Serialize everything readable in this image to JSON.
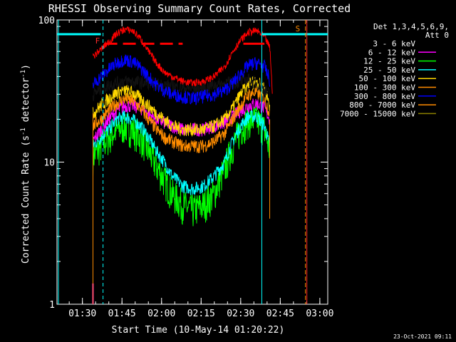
{
  "chart_data": {
    "type": "line",
    "title": "RHESSI Observing Summary Count Rates, Corrected",
    "xlabel": "Start Time (10-May-14 01:20:22)",
    "ylabel": "Corrected Count Rate (s⁻¹ detector⁻¹)",
    "ylabel_main": "Corrected Count Rate (s",
    "ylabel_mid": " detector",
    "ylabel_end": ")",
    "ylabel_sup": "-1",
    "y_scale": "log",
    "ylim": [
      1,
      100
    ],
    "y_ticks": [
      "1",
      "10",
      "100"
    ],
    "x_ticks": [
      "01:30",
      "01:45",
      "02:00",
      "02:15",
      "02:30",
      "02:45",
      "03:00"
    ],
    "legend_title": [
      "Det 1,3,4,5,6,9,",
      "Att 0"
    ],
    "legend_placement": "right",
    "footer": "23-Oct-2021 09:11",
    "markers": [
      {
        "label": "F",
        "time": "01:37",
        "color": "#ff2a2a"
      },
      {
        "label": "S",
        "time": "02:54",
        "color": "#ff8c00"
      }
    ],
    "series": [
      {
        "name": "3 - 6 keV",
        "color": "#000000",
        "x": [
          "01:34",
          "01:40",
          "01:45",
          "01:48",
          "01:55",
          "02:00",
          "02:05",
          "02:10",
          "02:15",
          "02:20",
          "02:25",
          "02:30",
          "02:33",
          "02:36",
          "02:41"
        ],
        "y": [
          30,
          35,
          37,
          37,
          36,
          35,
          34,
          33,
          33,
          35,
          36,
          37,
          38,
          36,
          30
        ]
      },
      {
        "name": "6 - 12 keV",
        "color": "#ff00ff",
        "x": [
          "01:34",
          "01:37",
          "01:40",
          "01:43",
          "01:46",
          "01:49",
          "01:52",
          "01:55",
          "01:58",
          "02:01",
          "02:04",
          "02:08",
          "02:12",
          "02:16",
          "02:20",
          "02:24",
          "02:27",
          "02:30",
          "02:33",
          "02:36",
          "02:39",
          "02:41"
        ],
        "y": [
          14,
          17,
          20,
          23,
          25,
          25,
          24,
          22,
          20,
          19,
          18,
          17,
          17,
          17,
          18,
          19,
          21,
          23,
          25,
          26,
          24,
          20
        ]
      },
      {
        "name": "12 - 25 keV",
        "color": "#00ff00",
        "x": [
          "01:34",
          "01:37",
          "01:40",
          "01:43",
          "01:46",
          "01:49",
          "01:52",
          "01:55",
          "01:58",
          "02:01",
          "02:04",
          "02:08",
          "02:12",
          "02:16",
          "02:20",
          "02:24",
          "02:27",
          "02:30",
          "02:33",
          "02:36",
          "02:39",
          "02:41"
        ],
        "y": [
          11,
          13,
          15,
          17,
          18,
          17,
          15,
          12,
          9.5,
          7.5,
          6,
          5,
          4.6,
          5,
          6,
          9,
          13,
          17,
          20,
          20,
          17,
          12
        ]
      },
      {
        "name": "25 - 50 keV",
        "color": "#00ffff",
        "x": [
          "01:34",
          "01:37",
          "01:40",
          "01:43",
          "01:46",
          "01:49",
          "01:52",
          "01:55",
          "01:58",
          "02:01",
          "02:04",
          "02:08",
          "02:12",
          "02:16",
          "02:20",
          "02:24",
          "02:27",
          "02:30",
          "02:33",
          "02:36",
          "02:39",
          "02:41"
        ],
        "y": [
          13,
          15,
          17,
          20,
          21,
          20,
          18,
          15,
          12,
          10,
          8,
          6.8,
          6.5,
          6.8,
          8,
          10,
          14,
          18,
          21,
          21,
          18,
          13
        ]
      },
      {
        "name": "50 - 100 keV",
        "color": "#ffd700",
        "x": [
          "01:34",
          "01:37",
          "01:40",
          "01:43",
          "01:46",
          "01:49",
          "01:52",
          "01:55",
          "01:58",
          "02:01",
          "02:04",
          "02:08",
          "02:12",
          "02:16",
          "02:20",
          "02:24",
          "02:27",
          "02:30",
          "02:33",
          "02:36",
          "02:39",
          "02:41"
        ],
        "y": [
          22,
          25,
          28,
          31,
          32,
          31,
          28,
          25,
          22,
          20,
          18,
          17,
          17,
          17,
          18,
          20,
          24,
          30,
          36,
          37,
          33,
          25
        ]
      },
      {
        "name": "100 - 300 keV",
        "color": "#ff8c00",
        "x": [
          "01:34",
          "01:37",
          "01:40",
          "01:43",
          "01:46",
          "01:49",
          "01:52",
          "01:55",
          "01:58",
          "02:01",
          "02:04",
          "02:08",
          "02:12",
          "02:16",
          "02:20",
          "02:24",
          "02:27",
          "02:30",
          "02:33",
          "02:36",
          "02:39",
          "02:41"
        ],
        "y": [
          18,
          20,
          23,
          26,
          28,
          27,
          24,
          20,
          17,
          15,
          14,
          13,
          13,
          13,
          14,
          16,
          20,
          25,
          30,
          31,
          28,
          22
        ]
      },
      {
        "name": "300 - 800 keV",
        "color": "#0000ff",
        "x": [
          "01:34",
          "01:37",
          "01:40",
          "01:43",
          "01:46",
          "01:49",
          "01:52",
          "01:55",
          "01:58",
          "02:01",
          "02:04",
          "02:08",
          "02:12",
          "02:16",
          "02:20",
          "02:24",
          "02:27",
          "02:30",
          "02:33",
          "02:36",
          "02:39",
          "02:41"
        ],
        "y": [
          35,
          40,
          45,
          50,
          53,
          51,
          46,
          40,
          35,
          32,
          30,
          29,
          28,
          29,
          30,
          32,
          36,
          42,
          48,
          50,
          47,
          38
        ]
      },
      {
        "name": "800 - 7000 keV",
        "color": "#ff8c00",
        "x": [
          "01:34",
          "01:35"
        ],
        "y": [
          22,
          22
        ]
      },
      {
        "name": "7000 - 15000 keV",
        "color": "#8b8000",
        "x": [
          "01:34",
          "01:35"
        ],
        "y": [
          20,
          20
        ]
      }
    ],
    "front_series": {
      "name": "Front (red)",
      "color": "#ff0000",
      "x": [
        "01:34",
        "01:37",
        "01:40",
        "01:43",
        "01:46",
        "01:49",
        "01:52",
        "01:55",
        "01:58",
        "02:01",
        "02:04",
        "02:08",
        "02:12",
        "02:16",
        "02:20",
        "02:24",
        "02:27",
        "02:30",
        "02:33",
        "02:36",
        "02:39",
        "02:41",
        "02:42"
      ],
      "y": [
        55,
        62,
        70,
        80,
        86,
        84,
        74,
        60,
        50,
        43,
        40,
        37,
        36,
        37,
        40,
        47,
        60,
        72,
        82,
        84,
        76,
        64,
        30
      ]
    }
  }
}
